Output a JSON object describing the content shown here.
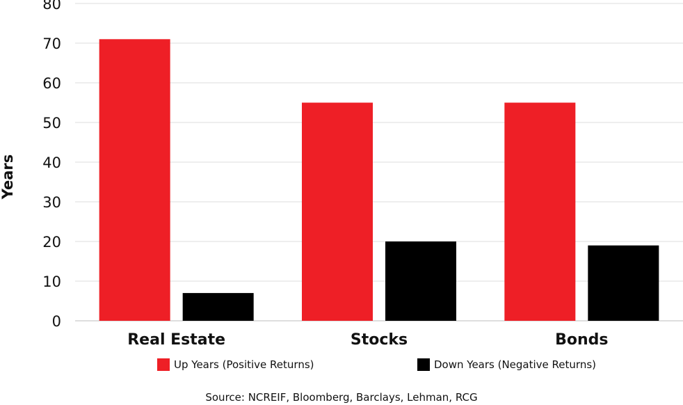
{
  "chart_data": {
    "type": "bar",
    "categories": [
      "Real Estate",
      "Stocks",
      "Bonds"
    ],
    "series": [
      {
        "name": "Up Years (Positive Returns)",
        "values": [
          71,
          55,
          55
        ],
        "color": "#ee1f26"
      },
      {
        "name": "Down Years (Negative Returns)",
        "values": [
          7,
          20,
          19
        ],
        "color": "#000000"
      }
    ],
    "title": "",
    "xlabel": "",
    "ylabel": "Years",
    "ylim": [
      0,
      80
    ],
    "yticks": [
      "0",
      "10",
      "20",
      "30",
      "40",
      "50",
      "60",
      "70",
      "80"
    ],
    "grid": true,
    "legend_position": "bottom"
  },
  "source_text": "Source: NCREIF, Bloomberg, Barclays, Lehman, RCG"
}
